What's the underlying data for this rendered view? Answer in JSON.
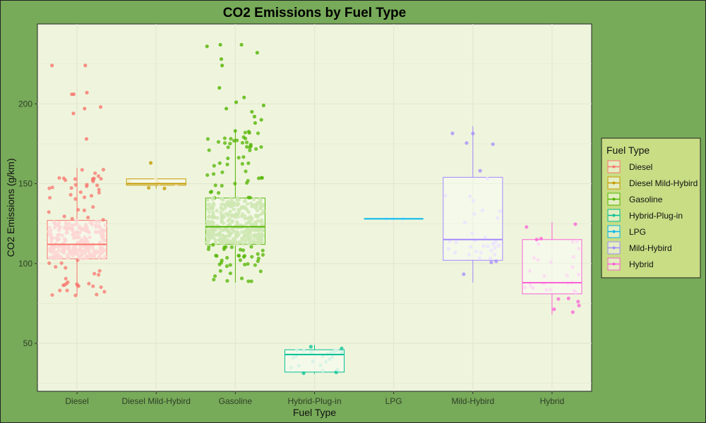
{
  "chart_data": {
    "type": "box",
    "title": "CO2 Emissions by Fuel Type",
    "xlabel": "Fuel Type",
    "ylabel": "CO2 Emissions (g/km)",
    "ylim": [
      20,
      250
    ],
    "yticks": [
      50,
      100,
      150,
      200
    ],
    "grid": true,
    "legend": {
      "title": "Fuel Type",
      "position": "right"
    },
    "colors": {
      "panel_bg": "#eff5dd",
      "plot_bg": "#77aa59",
      "legend_bg": "#c8dd84",
      "grid": "#e0e8cc"
    },
    "categories": [
      "Diesel",
      "Diesel Mild-Hybird",
      "Gasoline",
      "Hybrid-Plug-in",
      "LPG",
      "Mild-Hybird",
      "Hybrid"
    ],
    "series": [
      {
        "name": "Diesel",
        "color": "#f8766d",
        "fill": "#fdd6d2",
        "box": {
          "min": 80,
          "q1": 103,
          "median": 112,
          "q3": 127,
          "max": 160
        },
        "point_count": 320,
        "outliers": [
          224,
          224,
          207,
          206,
          206,
          198,
          197,
          194,
          178
        ]
      },
      {
        "name": "Diesel Mild-Hybird",
        "color": "#c49a00",
        "fill": "#f3ebc8",
        "box": {
          "min": 147,
          "q1": 149,
          "median": 150,
          "q3": 153,
          "max": 153
        },
        "point_count": 6,
        "outliers": [
          163,
          147
        ]
      },
      {
        "name": "Gasoline",
        "color": "#53b400",
        "fill": "#cfe7b3",
        "box": {
          "min": 88,
          "q1": 112,
          "median": 123,
          "q3": 141,
          "max": 184
        },
        "point_count": 480,
        "outliers": [
          237,
          237,
          236,
          232,
          228,
          224,
          210,
          204,
          201,
          199,
          197,
          195,
          192,
          190,
          188
        ]
      },
      {
        "name": "Hybrid-Plug-in",
        "color": "#00c094",
        "fill": "#d4f3e6",
        "box": {
          "min": 31,
          "q1": 32,
          "median": 43,
          "q3": 46,
          "max": 49
        },
        "point_count": 26,
        "outliers": []
      },
      {
        "name": "LPG",
        "color": "#00b6eb",
        "fill": "#d2f0fb",
        "box": {
          "min": 128,
          "q1": 128,
          "median": 128,
          "q3": 128,
          "max": 128
        },
        "point_count": 3,
        "outliers": []
      },
      {
        "name": "Mild-Hybird",
        "color": "#a58aff",
        "fill": "#ebe4ff",
        "box": {
          "min": 88,
          "q1": 102,
          "median": 115,
          "q3": 154,
          "max": 186
        },
        "point_count": 40,
        "outliers": []
      },
      {
        "name": "Hybrid",
        "color": "#fb61d7",
        "fill": "#fcdaf3",
        "box": {
          "min": 68,
          "q1": 81,
          "median": 88,
          "q3": 115,
          "max": 126
        },
        "point_count": 34,
        "outliers": []
      }
    ]
  }
}
